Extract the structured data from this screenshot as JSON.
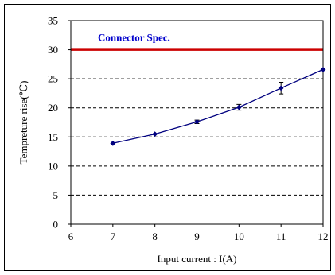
{
  "chart_data": {
    "type": "line",
    "title": "",
    "xlabel": "Input current : I(A)",
    "ylabel": "Tempreture rise(℃)",
    "xlim": [
      6,
      12
    ],
    "ylim": [
      0,
      35
    ],
    "x_ticks": [
      6,
      7,
      8,
      9,
      10,
      11,
      12
    ],
    "y_ticks": [
      0,
      5,
      10,
      15,
      20,
      25,
      30,
      35
    ],
    "grid": "horizontal-dashed",
    "legend": "none",
    "series": [
      {
        "color": "#00007f",
        "marker": "diamond",
        "points": [
          {
            "x": 7,
            "y": 13.9,
            "err": 0.0
          },
          {
            "x": 8,
            "y": 15.5,
            "err": 0.0
          },
          {
            "x": 9,
            "y": 17.6,
            "err": 0.3
          },
          {
            "x": 10,
            "y": 20.1,
            "err": 0.5
          },
          {
            "x": 11,
            "y": 23.4,
            "err": 1.0
          },
          {
            "x": 12,
            "y": 26.6,
            "err": 0.0
          }
        ]
      }
    ],
    "reference_line": {
      "y": 30,
      "color": "#cc0000",
      "label": "Connector Spec.",
      "label_color": "#0000cc"
    }
  }
}
